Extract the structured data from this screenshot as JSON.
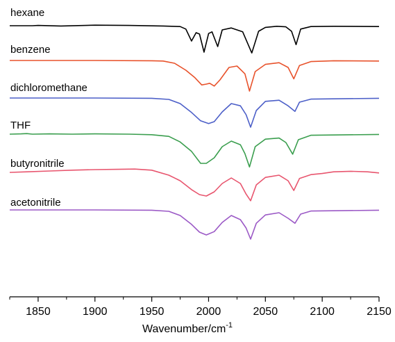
{
  "chart_data": {
    "type": "line",
    "title": "",
    "xlabel": "Wavenumber/cm",
    "xlabel_superscript": "-1",
    "ylabel": "",
    "xlim": [
      1825,
      2150
    ],
    "xticks": [
      1850,
      1900,
      1950,
      2000,
      2050,
      2100,
      2150
    ],
    "y_axis_shown": false,
    "grid": false,
    "legend": "none (series labelled directly above each trace)",
    "series": [
      {
        "name": "hexane",
        "color": "#000000",
        "points": [
          [
            1825,
            0
          ],
          [
            1845,
            0
          ],
          [
            1850,
            0.01
          ],
          [
            1870,
            -0.01
          ],
          [
            1900,
            0.02
          ],
          [
            1930,
            0.01
          ],
          [
            1960,
            -0.01
          ],
          [
            1975,
            -0.03
          ],
          [
            1980,
            -0.12
          ],
          [
            1985,
            -0.55
          ],
          [
            1989,
            -0.25
          ],
          [
            1992,
            -0.3
          ],
          [
            1996,
            -0.95
          ],
          [
            2000,
            -0.28
          ],
          [
            2003,
            -0.22
          ],
          [
            2008,
            -0.75
          ],
          [
            2012,
            -0.15
          ],
          [
            2020,
            -0.08
          ],
          [
            2030,
            -0.22
          ],
          [
            2038,
            -0.98
          ],
          [
            2044,
            -0.2
          ],
          [
            2050,
            -0.06
          ],
          [
            2060,
            -0.02
          ],
          [
            2068,
            -0.04
          ],
          [
            2073,
            -0.2
          ],
          [
            2077,
            -0.68
          ],
          [
            2081,
            -0.12
          ],
          [
            2090,
            -0.03
          ],
          [
            2110,
            -0.02
          ],
          [
            2150,
            -0.03
          ]
        ]
      },
      {
        "name": "benzene",
        "color": "#e8522b",
        "points": [
          [
            1825,
            0
          ],
          [
            1900,
            0
          ],
          [
            1950,
            -0.01
          ],
          [
            1960,
            -0.02
          ],
          [
            1970,
            -0.1
          ],
          [
            1980,
            -0.35
          ],
          [
            1988,
            -0.62
          ],
          [
            1994,
            -0.88
          ],
          [
            1998,
            -0.85
          ],
          [
            2001,
            -0.82
          ],
          [
            2005,
            -0.92
          ],
          [
            2010,
            -0.7
          ],
          [
            2018,
            -0.25
          ],
          [
            2025,
            -0.2
          ],
          [
            2032,
            -0.48
          ],
          [
            2036,
            -1.1
          ],
          [
            2041,
            -0.4
          ],
          [
            2050,
            -0.14
          ],
          [
            2062,
            -0.08
          ],
          [
            2070,
            -0.25
          ],
          [
            2075,
            -0.66
          ],
          [
            2080,
            -0.18
          ],
          [
            2090,
            -0.04
          ],
          [
            2110,
            -0.01
          ],
          [
            2150,
            -0.02
          ]
        ]
      },
      {
        "name": "dichloromethane",
        "color": "#4c5fc8",
        "points": [
          [
            1825,
            0
          ],
          [
            1900,
            0
          ],
          [
            1950,
            -0.01
          ],
          [
            1965,
            -0.05
          ],
          [
            1975,
            -0.2
          ],
          [
            1985,
            -0.52
          ],
          [
            1993,
            -0.82
          ],
          [
            2000,
            -0.92
          ],
          [
            2005,
            -0.85
          ],
          [
            2012,
            -0.5
          ],
          [
            2020,
            -0.2
          ],
          [
            2028,
            -0.28
          ],
          [
            2033,
            -0.6
          ],
          [
            2037,
            -1.05
          ],
          [
            2042,
            -0.45
          ],
          [
            2050,
            -0.12
          ],
          [
            2062,
            -0.08
          ],
          [
            2070,
            -0.28
          ],
          [
            2076,
            -0.48
          ],
          [
            2080,
            -0.15
          ],
          [
            2090,
            -0.04
          ],
          [
            2150,
            -0.01
          ]
        ]
      },
      {
        "name": "THF",
        "color": "#3a9e4e",
        "points": [
          [
            1825,
            0
          ],
          [
            1835,
            0.01
          ],
          [
            1840,
            0.02
          ],
          [
            1845,
            0.0
          ],
          [
            1860,
            0.01
          ],
          [
            1880,
            0.0
          ],
          [
            1900,
            0.01
          ],
          [
            1930,
            0.0
          ],
          [
            1950,
            -0.02
          ],
          [
            1965,
            -0.08
          ],
          [
            1975,
            -0.28
          ],
          [
            1985,
            -0.62
          ],
          [
            1993,
            -1.05
          ],
          [
            1998,
            -1.05
          ],
          [
            2005,
            -0.85
          ],
          [
            2012,
            -0.45
          ],
          [
            2020,
            -0.25
          ],
          [
            2028,
            -0.38
          ],
          [
            2032,
            -0.7
          ],
          [
            2036,
            -1.18
          ],
          [
            2041,
            -0.45
          ],
          [
            2050,
            -0.18
          ],
          [
            2062,
            -0.14
          ],
          [
            2068,
            -0.3
          ],
          [
            2074,
            -0.72
          ],
          [
            2079,
            -0.2
          ],
          [
            2090,
            -0.04
          ],
          [
            2150,
            -0.01
          ]
        ]
      },
      {
        "name": "butyronitrile",
        "color": "#e8556e",
        "points": [
          [
            1825,
            0
          ],
          [
            1840,
            0.02
          ],
          [
            1860,
            0.05
          ],
          [
            1880,
            0.08
          ],
          [
            1900,
            0.1
          ],
          [
            1920,
            0.11
          ],
          [
            1935,
            0.12
          ],
          [
            1950,
            0.08
          ],
          [
            1965,
            -0.1
          ],
          [
            1975,
            -0.3
          ],
          [
            1985,
            -0.62
          ],
          [
            1992,
            -0.8
          ],
          [
            1998,
            -0.85
          ],
          [
            2005,
            -0.7
          ],
          [
            2012,
            -0.4
          ],
          [
            2020,
            -0.2
          ],
          [
            2028,
            -0.4
          ],
          [
            2033,
            -0.78
          ],
          [
            2037,
            -1.02
          ],
          [
            2042,
            -0.45
          ],
          [
            2050,
            -0.18
          ],
          [
            2062,
            -0.1
          ],
          [
            2070,
            -0.3
          ],
          [
            2075,
            -0.65
          ],
          [
            2080,
            -0.22
          ],
          [
            2090,
            -0.08
          ],
          [
            2100,
            -0.04
          ],
          [
            2110,
            0.02
          ],
          [
            2125,
            0.04
          ],
          [
            2140,
            0.02
          ],
          [
            2150,
            -0.02
          ]
        ]
      },
      {
        "name": "acetonitrile",
        "color": "#9b59c6",
        "points": [
          [
            1825,
            0
          ],
          [
            1900,
            0
          ],
          [
            1950,
            -0.01
          ],
          [
            1965,
            -0.05
          ],
          [
            1975,
            -0.2
          ],
          [
            1985,
            -0.52
          ],
          [
            1992,
            -0.8
          ],
          [
            1998,
            -0.9
          ],
          [
            2005,
            -0.78
          ],
          [
            2012,
            -0.45
          ],
          [
            2020,
            -0.2
          ],
          [
            2028,
            -0.35
          ],
          [
            2033,
            -0.65
          ],
          [
            2037,
            -1.05
          ],
          [
            2042,
            -0.48
          ],
          [
            2050,
            -0.18
          ],
          [
            2062,
            -0.1
          ],
          [
            2070,
            -0.3
          ],
          [
            2076,
            -0.48
          ],
          [
            2081,
            -0.15
          ],
          [
            2090,
            -0.04
          ],
          [
            2150,
            -0.01
          ]
        ]
      }
    ]
  }
}
